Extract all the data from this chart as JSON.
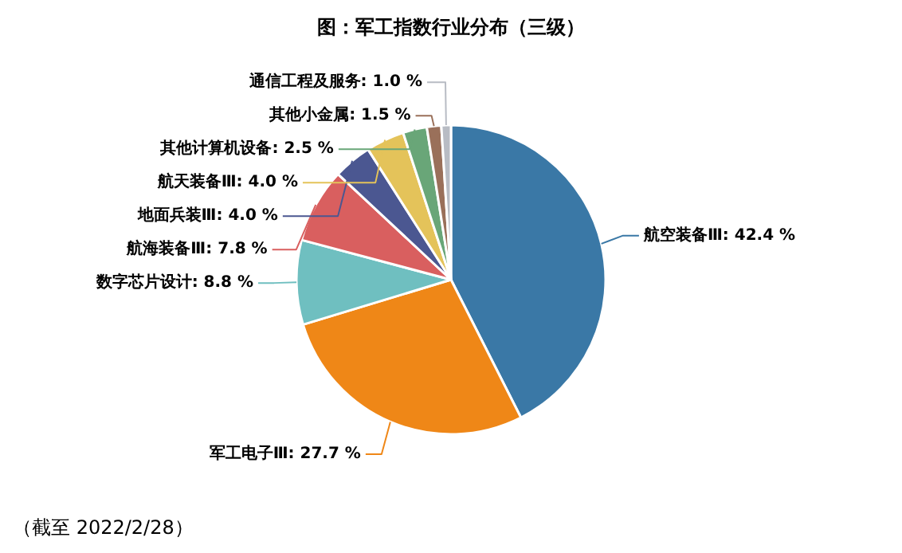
{
  "chart_data": {
    "type": "pie",
    "title": "图：军工指数行业分布（三级）",
    "categories": [
      "航空装备Ⅲ",
      "军工电子Ⅲ",
      "数字芯片设计",
      "航海装备Ⅲ",
      "地面兵装Ⅲ",
      "航天装备Ⅲ",
      "其他计算机设备",
      "其他小金属",
      "通信工程及服务"
    ],
    "values": [
      42.4,
      27.7,
      8.8,
      7.8,
      4.0,
      4.0,
      2.5,
      1.5,
      1.0
    ],
    "value_labels": [
      "42.4 %",
      "27.7 %",
      "8.8 %",
      "7.8 %",
      "4.0 %",
      "4.0 %",
      "2.5 %",
      "1.5 %",
      "1.0 %"
    ],
    "colors": [
      "#3a78a6",
      "#ef8717",
      "#6fbfc0",
      "#d95f5f",
      "#4b5791",
      "#e4c35a",
      "#69a678",
      "#9a705a",
      "#b8bcc4"
    ],
    "annotations": [
      "（截至 2022/2/28）"
    ]
  }
}
